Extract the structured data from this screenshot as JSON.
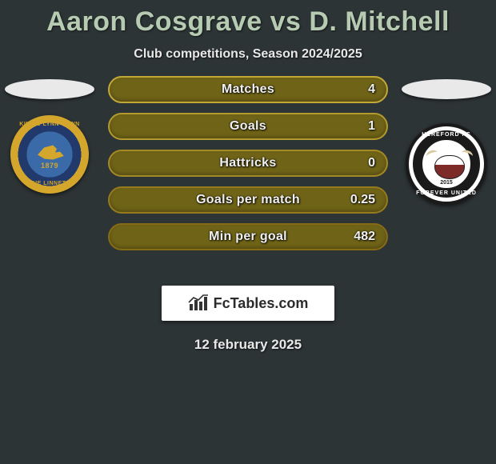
{
  "title": "Aaron Cosgrave vs D. Mitchell",
  "subtitle": "Club competitions, Season 2024/2025",
  "date": "12 february 2025",
  "title_color": "#b6cbb1",
  "background_color": "#2d3436",
  "left_club": {
    "name": "King's Lynn Town",
    "top_text": "KING'S LYNN TOWN",
    "bottom_text": "THE LINNETS",
    "year": "1879",
    "colors": {
      "outer": "#22396c",
      "gold": "#d4a72c",
      "inner": "#3b6aa9"
    }
  },
  "right_club": {
    "name": "Hereford FC",
    "top_text": "HEREFORD FC",
    "bottom_text": "FOREVER UNITED",
    "year": "2015",
    "colors": {
      "ring": "#1a1a1a",
      "face": "#ffffff",
      "bull": "#7d2b28"
    }
  },
  "bars": {
    "border_colors": [
      "#c2a936",
      "#b39a2e",
      "#a48a26",
      "#957a1e",
      "#866a16"
    ],
    "fill_color": "#6f6317",
    "label_color": "#f0f0f0",
    "label_fontsize": 16,
    "rows": [
      {
        "label": "Matches",
        "value": "4"
      },
      {
        "label": "Goals",
        "value": "1"
      },
      {
        "label": "Hattricks",
        "value": "0"
      },
      {
        "label": "Goals per match",
        "value": "0.25"
      },
      {
        "label": "Min per goal",
        "value": "482"
      }
    ]
  },
  "branding": {
    "text": "FcTables.com"
  }
}
